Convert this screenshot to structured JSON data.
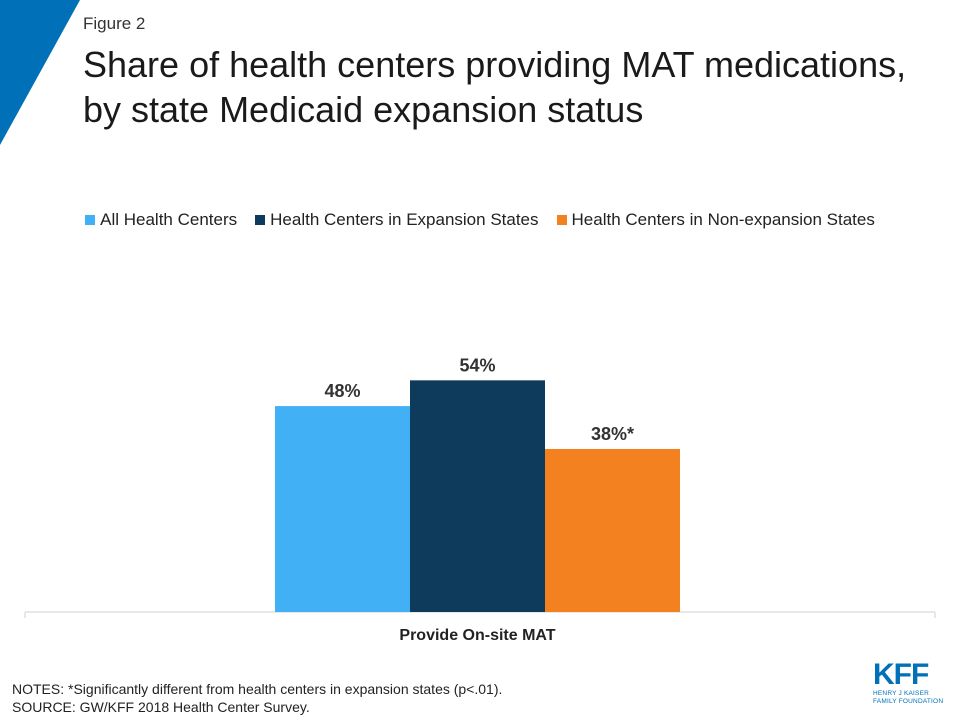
{
  "header": {
    "figure_label": "Figure 2",
    "title": "Share of health centers providing MAT medications, by state Medicaid expansion status"
  },
  "colors": {
    "corner_accent": "#0070b8",
    "all_health_centers": "#41b0f5",
    "expansion_states": "#0e3a5b",
    "non_expansion_states": "#f48120"
  },
  "chart_data": {
    "type": "bar",
    "categories": [
      "Provide On-site MAT"
    ],
    "series": [
      {
        "name": "All Health Centers",
        "values": [
          48
        ],
        "label": "48%",
        "color": "#41b0f5"
      },
      {
        "name": "Health Centers in Expansion States",
        "values": [
          54
        ],
        "label": "54%",
        "color": "#0e3a5b"
      },
      {
        "name": "Health Centers in Non-expansion States",
        "values": [
          38
        ],
        "label": "38%*",
        "color": "#f48120"
      }
    ],
    "ylim": [
      0,
      100
    ],
    "legend_position": "top",
    "grid": false
  },
  "notes": {
    "line1": "NOTES: *Significantly different from health centers in expansion states (p<.01).",
    "line2": "SOURCE: GW/KFF 2018 Health Center Survey."
  },
  "logo": {
    "letters": "KFF",
    "line1": "HENRY J KAISER",
    "line2": "FAMILY FOUNDATION"
  }
}
